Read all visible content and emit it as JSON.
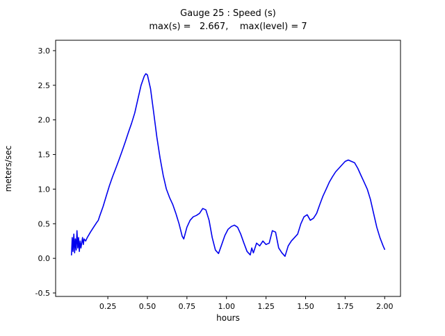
{
  "title": {
    "line1": "Gauge 25 : Speed (s)",
    "line2": "max(s) =   2.667,    max(level) = 7"
  },
  "chart_data": {
    "type": "line",
    "title": "Gauge 25 : Speed (s)",
    "subtitle": "max(s) =   2.667,    max(level) = 7",
    "xlabel": "hours",
    "ylabel": "meters/sec",
    "xlim": [
      -0.08,
      2.1
    ],
    "ylim": [
      -0.55,
      3.15
    ],
    "xticks": [
      0.25,
      0.5,
      0.75,
      1.0,
      1.25,
      1.5,
      1.75,
      2.0
    ],
    "xtick_labels": [
      "0.25",
      "0.50",
      "0.75",
      "1.00",
      "1.25",
      "1.50",
      "1.75",
      "2.00"
    ],
    "yticks": [
      -0.5,
      0.0,
      0.5,
      1.0,
      1.5,
      2.0,
      2.5,
      3.0
    ],
    "ytick_labels": [
      "-0.5",
      "0.0",
      "0.5",
      "1.0",
      "1.5",
      "2.0",
      "2.5",
      "3.0"
    ],
    "line_color": "#0000ee",
    "grid": false,
    "legend": null,
    "max_s": 2.667,
    "max_level": 7,
    "x": [
      0.02,
      0.025,
      0.03,
      0.035,
      0.04,
      0.045,
      0.05,
      0.055,
      0.06,
      0.065,
      0.07,
      0.075,
      0.08,
      0.085,
      0.09,
      0.095,
      0.1,
      0.11,
      0.12,
      0.14,
      0.16,
      0.18,
      0.19,
      0.2,
      0.22,
      0.24,
      0.26,
      0.28,
      0.3,
      0.32,
      0.34,
      0.36,
      0.38,
      0.4,
      0.42,
      0.44,
      0.46,
      0.48,
      0.49,
      0.5,
      0.52,
      0.54,
      0.56,
      0.58,
      0.6,
      0.62,
      0.64,
      0.66,
      0.68,
      0.7,
      0.72,
      0.73,
      0.75,
      0.77,
      0.79,
      0.81,
      0.83,
      0.85,
      0.87,
      0.89,
      0.91,
      0.93,
      0.95,
      0.97,
      0.99,
      1.01,
      1.03,
      1.05,
      1.07,
      1.09,
      1.11,
      1.13,
      1.15,
      1.16,
      1.17,
      1.19,
      1.21,
      1.23,
      1.25,
      1.27,
      1.29,
      1.31,
      1.33,
      1.35,
      1.37,
      1.39,
      1.41,
      1.43,
      1.45,
      1.47,
      1.49,
      1.51,
      1.53,
      1.55,
      1.57,
      1.59,
      1.61,
      1.63,
      1.65,
      1.67,
      1.69,
      1.71,
      1.73,
      1.75,
      1.77,
      1.79,
      1.81,
      1.83,
      1.85,
      1.87,
      1.89,
      1.91,
      1.93,
      1.95,
      1.97,
      1.99,
      2.0
    ],
    "y": [
      0.05,
      0.3,
      0.1,
      0.35,
      0.08,
      0.28,
      0.12,
      0.4,
      0.15,
      0.3,
      0.1,
      0.25,
      0.15,
      0.22,
      0.3,
      0.2,
      0.28,
      0.25,
      0.3,
      0.38,
      0.45,
      0.52,
      0.55,
      0.62,
      0.75,
      0.9,
      1.05,
      1.18,
      1.3,
      1.42,
      1.55,
      1.68,
      1.82,
      1.95,
      2.1,
      2.3,
      2.5,
      2.63,
      2.667,
      2.65,
      2.45,
      2.1,
      1.75,
      1.45,
      1.2,
      1.0,
      0.88,
      0.78,
      0.65,
      0.5,
      0.32,
      0.28,
      0.45,
      0.55,
      0.6,
      0.62,
      0.65,
      0.72,
      0.7,
      0.55,
      0.3,
      0.12,
      0.07,
      0.2,
      0.33,
      0.42,
      0.46,
      0.48,
      0.45,
      0.35,
      0.22,
      0.1,
      0.05,
      0.15,
      0.08,
      0.22,
      0.18,
      0.25,
      0.2,
      0.22,
      0.4,
      0.38,
      0.15,
      0.08,
      0.03,
      0.18,
      0.25,
      0.3,
      0.35,
      0.5,
      0.6,
      0.63,
      0.55,
      0.58,
      0.65,
      0.78,
      0.9,
      1.0,
      1.1,
      1.18,
      1.25,
      1.3,
      1.35,
      1.4,
      1.42,
      1.4,
      1.38,
      1.3,
      1.2,
      1.1,
      1.0,
      0.85,
      0.65,
      0.45,
      0.3,
      0.18,
      0.13
    ]
  }
}
